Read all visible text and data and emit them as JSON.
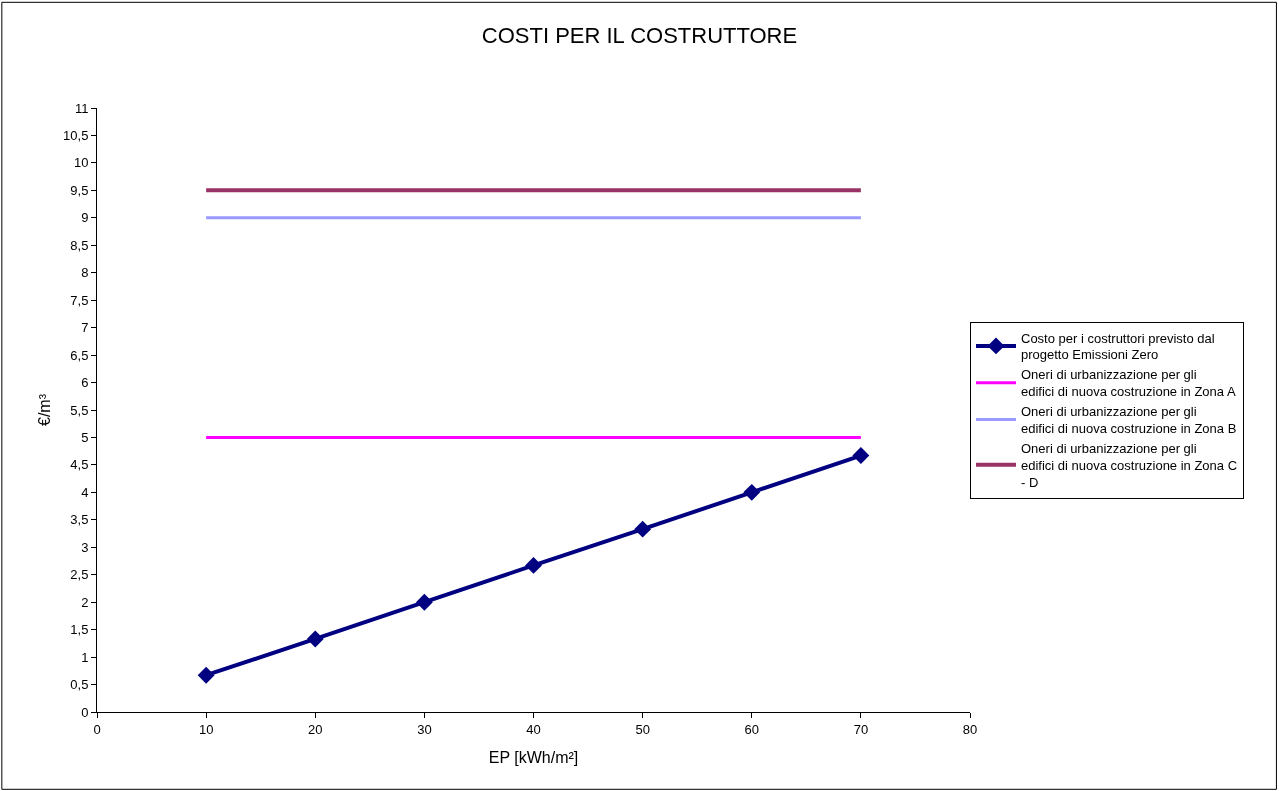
{
  "chart_data": {
    "type": "line",
    "title": "COSTI PER IL COSTRUTTORE",
    "xlabel": "EP [kWh/m²]",
    "ylabel": "€/m³",
    "xlim": [
      0,
      80
    ],
    "xticks": [
      0,
      10,
      20,
      30,
      40,
      50,
      60,
      70,
      80
    ],
    "ylim": [
      0,
      11
    ],
    "yticks": [
      0,
      {
        "value": 0.5,
        "label": "0,5"
      },
      1,
      {
        "value": 1.5,
        "label": "1,5"
      },
      2,
      {
        "value": 2.5,
        "label": "2,5"
      },
      3,
      {
        "value": 3.5,
        "label": "3,5"
      },
      4,
      {
        "value": 4.5,
        "label": "4,5"
      },
      5,
      {
        "value": 5.5,
        "label": "5,5"
      },
      6,
      {
        "value": 6.5,
        "label": "6,5"
      },
      7,
      {
        "value": 7.5,
        "label": "7,5"
      },
      8,
      {
        "value": 8.5,
        "label": "8,5"
      },
      9,
      {
        "value": 9.5,
        "label": "9,5"
      },
      10,
      {
        "value": 10.5,
        "label": "10,5"
      },
      11
    ],
    "grid": false,
    "legend": "right",
    "line_style": "solid",
    "series": [
      {
        "name": "Costo per i costruttori previsto dal progetto Emissioni Zero",
        "color": "#000080",
        "marker": "diamond",
        "x": [
          10,
          20,
          30,
          40,
          50,
          60,
          70
        ],
        "values": [
          0.67,
          1.33,
          2,
          2.67,
          3.33,
          4,
          4.67
        ]
      },
      {
        "name": "Oneri di urbanizzazione per gli edifici di nuova costruzione in Zona A",
        "color": "#ff00ff",
        "marker": "none",
        "x": [
          10,
          70
        ],
        "values": [
          5,
          5
        ]
      },
      {
        "name": "Oneri di urbanizzazione per gli edifici di nuova costruzione in Zona B",
        "color": "#9999ff",
        "marker": "none",
        "x": [
          10,
          70
        ],
        "values": [
          9,
          9
        ]
      },
      {
        "name": "Oneri di urbanizzazione per gli edifici di nuova costruzione in Zona C - D",
        "color": "#993366",
        "marker": "none",
        "x": [
          10,
          70
        ],
        "values": [
          9.5,
          9.5
        ]
      }
    ]
  }
}
